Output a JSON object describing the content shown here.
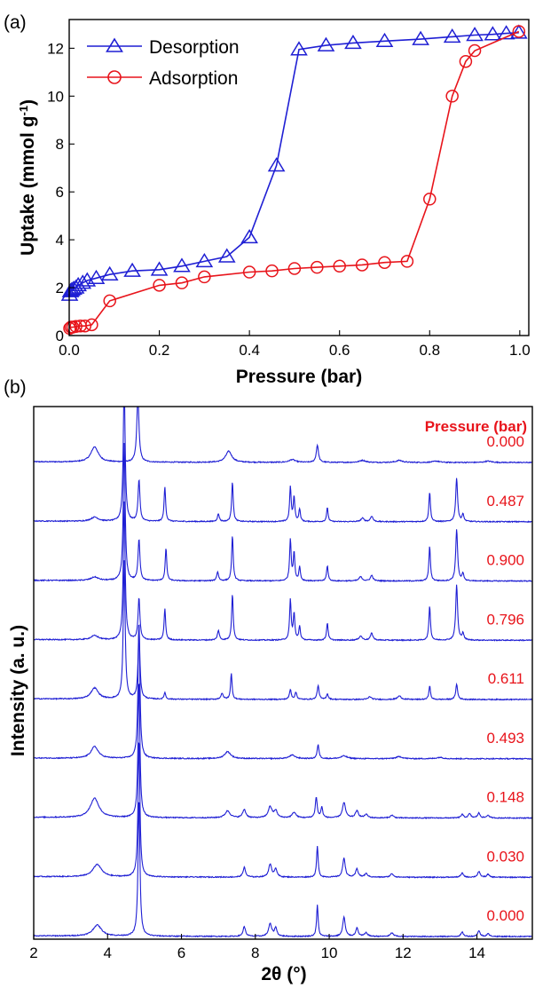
{
  "panel_a_label": "(a)",
  "panel_b_label": "(b)",
  "colors": {
    "desorption": "#1f1fd4",
    "adsorption": "#e8141b",
    "xrd": "#1f1fd4",
    "pressure_label": "#e8141b"
  },
  "chart_data": [
    {
      "type": "line",
      "panel": "a",
      "xlabel": "Pressure (bar)",
      "ylabel_main": "Uptake (mmol g",
      "ylabel_sup": "-1",
      "ylabel_end": ")",
      "xlim": [
        0.0,
        1.02
      ],
      "ylim": [
        0,
        13.2
      ],
      "xticks": [
        "0.0",
        "0.2",
        "0.4",
        "0.6",
        "0.8",
        "1.0"
      ],
      "xtick_values": [
        0.0,
        0.2,
        0.4,
        0.6,
        0.8,
        1.0
      ],
      "yticks": [
        "0",
        "2",
        "4",
        "6",
        "8",
        "10",
        "12"
      ],
      "ytick_values": [
        0,
        2,
        4,
        6,
        8,
        10,
        12
      ],
      "legend_position": "top-left",
      "series": [
        {
          "name": "Desorption",
          "marker": "triangle",
          "x": [
            0.998,
            0.97,
            0.94,
            0.9,
            0.85,
            0.78,
            0.7,
            0.63,
            0.57,
            0.51,
            0.46,
            0.4,
            0.35,
            0.3,
            0.25,
            0.2,
            0.14,
            0.09,
            0.06,
            0.04,
            0.03,
            0.02,
            0.015,
            0.01,
            0.006,
            0.003,
            0.001
          ],
          "y": [
            12.65,
            12.62,
            12.58,
            12.55,
            12.48,
            12.38,
            12.3,
            12.22,
            12.12,
            11.95,
            7.1,
            4.1,
            3.3,
            3.1,
            2.9,
            2.75,
            2.7,
            2.55,
            2.4,
            2.3,
            2.2,
            2.1,
            2.0,
            1.95,
            1.9,
            1.85,
            1.7
          ]
        },
        {
          "name": "Adsorption",
          "marker": "circle",
          "x": [
            0.001,
            0.004,
            0.008,
            0.015,
            0.025,
            0.035,
            0.05,
            0.09,
            0.2,
            0.25,
            0.3,
            0.4,
            0.45,
            0.5,
            0.55,
            0.6,
            0.65,
            0.7,
            0.75,
            0.8,
            0.85,
            0.88,
            0.9,
            0.998
          ],
          "y": [
            0.3,
            0.35,
            0.35,
            0.38,
            0.4,
            0.4,
            0.45,
            1.45,
            2.1,
            2.2,
            2.45,
            2.65,
            2.7,
            2.8,
            2.85,
            2.9,
            2.95,
            3.05,
            3.1,
            5.7,
            10.0,
            11.45,
            11.9,
            12.7
          ]
        }
      ]
    },
    {
      "type": "line",
      "panel": "b",
      "xlabel": "2θ (°)",
      "ylabel": "Intensity (a. u.)",
      "xlim": [
        2.0,
        15.5
      ],
      "xticks": [
        "2",
        "4",
        "6",
        "8",
        "10",
        "12",
        "14"
      ],
      "xtick_values": [
        2,
        4,
        6,
        8,
        10,
        12,
        14
      ],
      "legend_title": "Pressure (bar)",
      "series": [
        {
          "name": "0.000",
          "peaks": [
            [
              3.65,
              22,
              0.12
            ],
            [
              4.82,
              95,
              0.035
            ],
            [
              7.28,
              16,
              0.1
            ],
            [
              9.0,
              4,
              0.1
            ],
            [
              9.68,
              25,
              0.035
            ],
            [
              10.9,
              3,
              0.1
            ],
            [
              11.9,
              3,
              0.1
            ],
            [
              12.9,
              2,
              0.1
            ],
            [
              14.3,
              2,
              0.1
            ]
          ]
        },
        {
          "name": "0.487",
          "peaks": [
            [
              3.65,
              6,
              0.12
            ],
            [
              4.45,
              200,
              0.03
            ],
            [
              4.85,
              60,
              0.03
            ],
            [
              5.55,
              50,
              0.025
            ],
            [
              7.0,
              11,
              0.03
            ],
            [
              7.38,
              58,
              0.025
            ],
            [
              8.95,
              50,
              0.025
            ],
            [
              9.05,
              35,
              0.025
            ],
            [
              9.2,
              18,
              0.025
            ],
            [
              9.95,
              20,
              0.025
            ],
            [
              10.9,
              5,
              0.05
            ],
            [
              11.15,
              8,
              0.04
            ],
            [
              12.72,
              43,
              0.025
            ],
            [
              13.45,
              63,
              0.03
            ],
            [
              13.62,
              10,
              0.03
            ]
          ]
        },
        {
          "name": "0.900",
          "peaks": [
            [
              3.65,
              5,
              0.12
            ],
            [
              4.45,
              200,
              0.03
            ],
            [
              4.85,
              60,
              0.03
            ],
            [
              5.58,
              47,
              0.025
            ],
            [
              6.98,
              13,
              0.03
            ],
            [
              7.38,
              65,
              0.025
            ],
            [
              8.95,
              60,
              0.025
            ],
            [
              9.05,
              40,
              0.025
            ],
            [
              9.2,
              20,
              0.025
            ],
            [
              9.95,
              22,
              0.025
            ],
            [
              10.85,
              6,
              0.05
            ],
            [
              11.15,
              8,
              0.04
            ],
            [
              12.72,
              50,
              0.025
            ],
            [
              13.45,
              75,
              0.03
            ],
            [
              13.62,
              10,
              0.03
            ]
          ]
        },
        {
          "name": "0.796",
          "peaks": [
            [
              3.65,
              6,
              0.12
            ],
            [
              4.45,
              200,
              0.03
            ],
            [
              4.85,
              60,
              0.03
            ],
            [
              5.55,
              45,
              0.025
            ],
            [
              7.0,
              14,
              0.03
            ],
            [
              7.38,
              67,
              0.025
            ],
            [
              8.95,
              58,
              0.025
            ],
            [
              9.05,
              38,
              0.025
            ],
            [
              9.2,
              20,
              0.025
            ],
            [
              9.95,
              25,
              0.025
            ],
            [
              10.85,
              6,
              0.05
            ],
            [
              11.15,
              10,
              0.04
            ],
            [
              12.72,
              50,
              0.025
            ],
            [
              13.45,
              80,
              0.03
            ],
            [
              13.62,
              10,
              0.03
            ]
          ]
        },
        {
          "name": "0.611",
          "peaks": [
            [
              3.65,
              16,
              0.12
            ],
            [
              4.45,
              200,
              0.03
            ],
            [
              4.85,
              100,
              0.03
            ],
            [
              5.55,
              10,
              0.025
            ],
            [
              7.1,
              8,
              0.04
            ],
            [
              7.35,
              37,
              0.025
            ],
            [
              8.95,
              14,
              0.03
            ],
            [
              9.1,
              10,
              0.03
            ],
            [
              9.7,
              20,
              0.03
            ],
            [
              9.95,
              8,
              0.03
            ],
            [
              11.1,
              4,
              0.05
            ],
            [
              11.9,
              5,
              0.06
            ],
            [
              12.72,
              20,
              0.025
            ],
            [
              13.45,
              22,
              0.03
            ]
          ]
        },
        {
          "name": "0.493",
          "peaks": [
            [
              3.65,
              17,
              0.12
            ],
            [
              4.85,
              200,
              0.03
            ],
            [
              7.25,
              10,
              0.1
            ],
            [
              9.0,
              5,
              0.1
            ],
            [
              9.7,
              20,
              0.03
            ],
            [
              10.4,
              4,
              0.1
            ],
            [
              11.9,
              3,
              0.1
            ],
            [
              13.0,
              2,
              0.1
            ]
          ]
        },
        {
          "name": "0.148",
          "peaks": [
            [
              3.65,
              28,
              0.14
            ],
            [
              4.85,
              200,
              0.03
            ],
            [
              7.25,
              10,
              0.08
            ],
            [
              7.7,
              12,
              0.05
            ],
            [
              8.4,
              16,
              0.06
            ],
            [
              8.55,
              10,
              0.05
            ],
            [
              9.05,
              8,
              0.06
            ],
            [
              9.65,
              30,
              0.03
            ],
            [
              9.8,
              15,
              0.03
            ],
            [
              10.4,
              22,
              0.05
            ],
            [
              10.75,
              10,
              0.05
            ],
            [
              11.0,
              5,
              0.05
            ],
            [
              11.7,
              4,
              0.05
            ],
            [
              13.6,
              5,
              0.04
            ],
            [
              13.8,
              6,
              0.04
            ],
            [
              14.05,
              7,
              0.04
            ],
            [
              14.3,
              4,
              0.04
            ]
          ]
        },
        {
          "name": "0.030",
          "peaks": [
            [
              3.72,
              18,
              0.14
            ],
            [
              4.85,
              200,
              0.03
            ],
            [
              7.7,
              14,
              0.04
            ],
            [
              8.4,
              18,
              0.05
            ],
            [
              8.55,
              12,
              0.04
            ],
            [
              9.68,
              45,
              0.025
            ],
            [
              10.4,
              28,
              0.04
            ],
            [
              10.75,
              12,
              0.04
            ],
            [
              11.0,
              5,
              0.05
            ],
            [
              11.7,
              5,
              0.05
            ],
            [
              13.6,
              6,
              0.04
            ],
            [
              14.05,
              8,
              0.04
            ],
            [
              14.3,
              4,
              0.04
            ]
          ]
        },
        {
          "name": "0.000",
          "peaks": [
            [
              3.72,
              16,
              0.14
            ],
            [
              4.85,
              200,
              0.03
            ],
            [
              7.7,
              14,
              0.04
            ],
            [
              8.4,
              18,
              0.05
            ],
            [
              8.55,
              12,
              0.04
            ],
            [
              9.68,
              45,
              0.025
            ],
            [
              10.4,
              28,
              0.04
            ],
            [
              10.75,
              12,
              0.04
            ],
            [
              11.0,
              5,
              0.05
            ],
            [
              11.7,
              5,
              0.05
            ],
            [
              13.6,
              6,
              0.04
            ],
            [
              14.05,
              8,
              0.04
            ],
            [
              14.3,
              4,
              0.04
            ]
          ]
        }
      ]
    }
  ]
}
